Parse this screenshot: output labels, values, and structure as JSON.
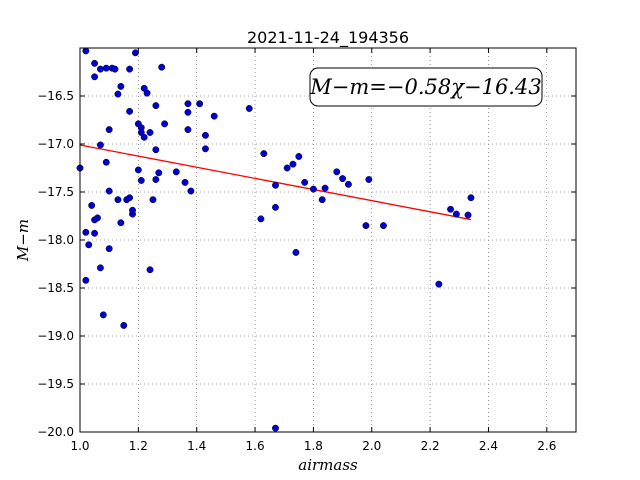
{
  "chart_data": {
    "type": "scatter",
    "title": "2021-11-24_194356",
    "xlabel": "airmass",
    "ylabel": "M−m",
    "xlim": [
      1.0,
      2.7
    ],
    "ylim": [
      -20.0,
      -16.0
    ],
    "y_inverted": true,
    "x_ticks": [
      "1.0",
      "1.2",
      "1.4",
      "1.6",
      "1.8",
      "2.0",
      "2.2",
      "2.4",
      "2.6"
    ],
    "y_ticks": [
      "−16.5",
      "−17.0",
      "−17.5",
      "−18.0",
      "−18.5",
      "−19.0",
      "−19.5",
      "−20.0"
    ],
    "grid": true,
    "annotation": "M−m=−0.58χ−16.43",
    "fit": {
      "slope": -0.58,
      "intercept": -16.43,
      "x_range": [
        1.0,
        2.34
      ],
      "color": "#ff0000"
    },
    "marker_color": "#0000cc",
    "points": [
      {
        "x": 1.0,
        "y": -17.25
      },
      {
        "x": 1.02,
        "y": -16.03
      },
      {
        "x": 1.02,
        "y": -17.92
      },
      {
        "x": 1.02,
        "y": -18.42
      },
      {
        "x": 1.03,
        "y": -18.05
      },
      {
        "x": 1.04,
        "y": -17.64
      },
      {
        "x": 1.05,
        "y": -17.93
      },
      {
        "x": 1.05,
        "y": -17.79
      },
      {
        "x": 1.05,
        "y": -16.3
      },
      {
        "x": 1.05,
        "y": -16.16
      },
      {
        "x": 1.06,
        "y": -17.77
      },
      {
        "x": 1.07,
        "y": -18.29
      },
      {
        "x": 1.07,
        "y": -17.01
      },
      {
        "x": 1.07,
        "y": -16.22
      },
      {
        "x": 1.08,
        "y": -18.78
      },
      {
        "x": 1.09,
        "y": -17.19
      },
      {
        "x": 1.09,
        "y": -16.21
      },
      {
        "x": 1.1,
        "y": -18.09
      },
      {
        "x": 1.1,
        "y": -17.49
      },
      {
        "x": 1.1,
        "y": -16.85
      },
      {
        "x": 1.11,
        "y": -16.21
      },
      {
        "x": 1.12,
        "y": -16.22
      },
      {
        "x": 1.13,
        "y": -16.48
      },
      {
        "x": 1.13,
        "y": -17.58
      },
      {
        "x": 1.14,
        "y": -16.4
      },
      {
        "x": 1.14,
        "y": -17.82
      },
      {
        "x": 1.15,
        "y": -18.89
      },
      {
        "x": 1.16,
        "y": -17.58
      },
      {
        "x": 1.17,
        "y": -16.22
      },
      {
        "x": 1.17,
        "y": -16.66
      },
      {
        "x": 1.17,
        "y": -17.56
      },
      {
        "x": 1.18,
        "y": -17.73
      },
      {
        "x": 1.18,
        "y": -17.69
      },
      {
        "x": 1.19,
        "y": -16.05
      },
      {
        "x": 1.2,
        "y": -17.27
      },
      {
        "x": 1.2,
        "y": -16.79
      },
      {
        "x": 1.21,
        "y": -16.83
      },
      {
        "x": 1.21,
        "y": -16.88
      },
      {
        "x": 1.21,
        "y": -17.38
      },
      {
        "x": 1.22,
        "y": -16.42
      },
      {
        "x": 1.22,
        "y": -16.93
      },
      {
        "x": 1.23,
        "y": -16.47
      },
      {
        "x": 1.24,
        "y": -18.31
      },
      {
        "x": 1.24,
        "y": -16.88
      },
      {
        "x": 1.25,
        "y": -17.58
      },
      {
        "x": 1.26,
        "y": -16.6
      },
      {
        "x": 1.26,
        "y": -17.37
      },
      {
        "x": 1.26,
        "y": -17.06
      },
      {
        "x": 1.27,
        "y": -17.3
      },
      {
        "x": 1.28,
        "y": -16.2
      },
      {
        "x": 1.29,
        "y": -16.79
      },
      {
        "x": 1.33,
        "y": -17.29
      },
      {
        "x": 1.36,
        "y": -17.4
      },
      {
        "x": 1.37,
        "y": -16.58
      },
      {
        "x": 1.37,
        "y": -16.85
      },
      {
        "x": 1.37,
        "y": -16.67
      },
      {
        "x": 1.38,
        "y": -17.49
      },
      {
        "x": 1.41,
        "y": -16.58
      },
      {
        "x": 1.43,
        "y": -17.05
      },
      {
        "x": 1.43,
        "y": -16.91
      },
      {
        "x": 1.46,
        "y": -16.71
      },
      {
        "x": 1.58,
        "y": -16.63
      },
      {
        "x": 1.62,
        "y": -17.78
      },
      {
        "x": 1.63,
        "y": -17.1
      },
      {
        "x": 1.67,
        "y": -17.66
      },
      {
        "x": 1.67,
        "y": -17.43
      },
      {
        "x": 1.67,
        "y": -19.96
      },
      {
        "x": 1.71,
        "y": -17.25
      },
      {
        "x": 1.73,
        "y": -17.21
      },
      {
        "x": 1.74,
        "y": -18.13
      },
      {
        "x": 1.75,
        "y": -17.13
      },
      {
        "x": 1.77,
        "y": -17.4
      },
      {
        "x": 1.8,
        "y": -17.47
      },
      {
        "x": 1.83,
        "y": -17.58
      },
      {
        "x": 1.84,
        "y": -17.46
      },
      {
        "x": 1.88,
        "y": -17.29
      },
      {
        "x": 1.9,
        "y": -17.36
      },
      {
        "x": 1.92,
        "y": -17.42
      },
      {
        "x": 1.98,
        "y": -17.85
      },
      {
        "x": 1.99,
        "y": -17.37
      },
      {
        "x": 2.04,
        "y": -17.85
      },
      {
        "x": 2.23,
        "y": -18.46
      },
      {
        "x": 2.27,
        "y": -17.68
      },
      {
        "x": 2.29,
        "y": -17.73
      },
      {
        "x": 2.33,
        "y": -17.74
      },
      {
        "x": 2.34,
        "y": -17.56
      }
    ]
  }
}
